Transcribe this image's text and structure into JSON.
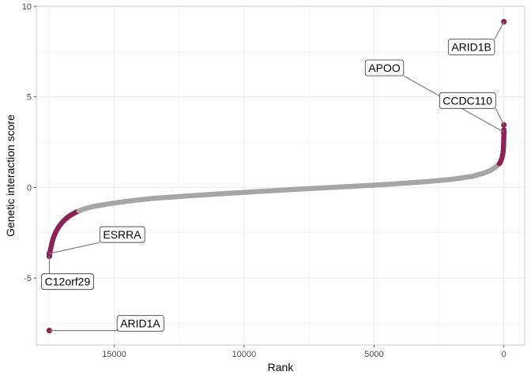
{
  "chart_data": {
    "type": "scatter",
    "title": "",
    "xlabel": "Rank",
    "ylabel": "Genetic interaction score",
    "x_reversed": true,
    "xlim": [
      18000,
      -800
    ],
    "ylim": [
      -8.7,
      10
    ],
    "x_ticks": [
      15000,
      10000,
      5000,
      0
    ],
    "x_tick_labels": [
      "15000",
      "10000",
      "5000",
      "0"
    ],
    "y_ticks": [
      10,
      5,
      0,
      -5
    ],
    "y_tick_labels": [
      "10",
      "5",
      "0",
      "-5"
    ],
    "grid": true,
    "total_points": 17500,
    "colors": {
      "background": "#ffffff",
      "grid": "#ebebeb",
      "default_point": "#a6a6a6",
      "hit_point": "#8b2456",
      "connector": "#7f7f7f"
    },
    "curve": [
      [
        17500,
        -3.75
      ],
      [
        17480,
        -3.6
      ],
      [
        17450,
        -3.4
      ],
      [
        17420,
        -3.2
      ],
      [
        17390,
        -3.0
      ],
      [
        17360,
        -2.85
      ],
      [
        17320,
        -2.7
      ],
      [
        17280,
        -2.55
      ],
      [
        17230,
        -2.4
      ],
      [
        17170,
        -2.25
      ],
      [
        17100,
        -2.1
      ],
      [
        17020,
        -1.95
      ],
      [
        16920,
        -1.8
      ],
      [
        16800,
        -1.65
      ],
      [
        16650,
        -1.5
      ],
      [
        16450,
        -1.35
      ],
      [
        16200,
        -1.2
      ],
      [
        15800,
        -1.05
      ],
      [
        15200,
        -0.9
      ],
      [
        14500,
        -0.76
      ],
      [
        13500,
        -0.6
      ],
      [
        12000,
        -0.45
      ],
      [
        10000,
        -0.27
      ],
      [
        8000,
        -0.1
      ],
      [
        6000,
        0.05
      ],
      [
        4500,
        0.17
      ],
      [
        3000,
        0.32
      ],
      [
        2000,
        0.45
      ],
      [
        1200,
        0.62
      ],
      [
        800,
        0.78
      ],
      [
        500,
        0.95
      ],
      [
        300,
        1.15
      ],
      [
        150,
        1.35
      ],
      [
        80,
        1.6
      ],
      [
        40,
        1.85
      ],
      [
        20,
        2.1
      ],
      [
        10,
        2.4
      ],
      [
        5,
        2.7
      ],
      [
        2,
        3.0
      ],
      [
        1,
        3.2
      ]
    ],
    "hit_threshold_low": -1.3,
    "hit_threshold_high": 1.3,
    "outliers": [
      {
        "gene": "ARID1B",
        "rank": 0,
        "score": 9.15
      },
      {
        "gene": "CCDC110",
        "rank": 0,
        "score": 3.45
      },
      {
        "gene": "APOO",
        "rank": 0,
        "score": 3.05
      },
      {
        "gene": "C12orf29",
        "rank": 17500,
        "score": -3.8
      },
      {
        "gene": "ESRRA",
        "rank": 17500,
        "score": -3.65
      },
      {
        "gene": "ARID1A",
        "rank": 17500,
        "score": -7.9
      }
    ],
    "annotations": [
      {
        "gene": "ARID1B",
        "label_rank": 1250,
        "label_score": 7.75,
        "point_rank": 0,
        "point_score": 9.15
      },
      {
        "gene": "APOO",
        "label_rank": 4600,
        "label_score": 6.6,
        "point_rank": 0,
        "point_score": 3.05
      },
      {
        "gene": "CCDC110",
        "label_rank": 1400,
        "label_score": 4.8,
        "point_rank": 0,
        "point_score": 3.45
      },
      {
        "gene": "ESRRA",
        "label_rank": 14700,
        "label_score": -2.6,
        "point_rank": 17500,
        "point_score": -3.65
      },
      {
        "gene": "C12orf29",
        "label_rank": 16800,
        "label_score": -5.2,
        "point_rank": 17500,
        "point_score": -3.8
      },
      {
        "gene": "ARID1A",
        "label_rank": 14000,
        "label_score": -7.5,
        "point_rank": 17500,
        "point_score": -7.9
      }
    ]
  }
}
